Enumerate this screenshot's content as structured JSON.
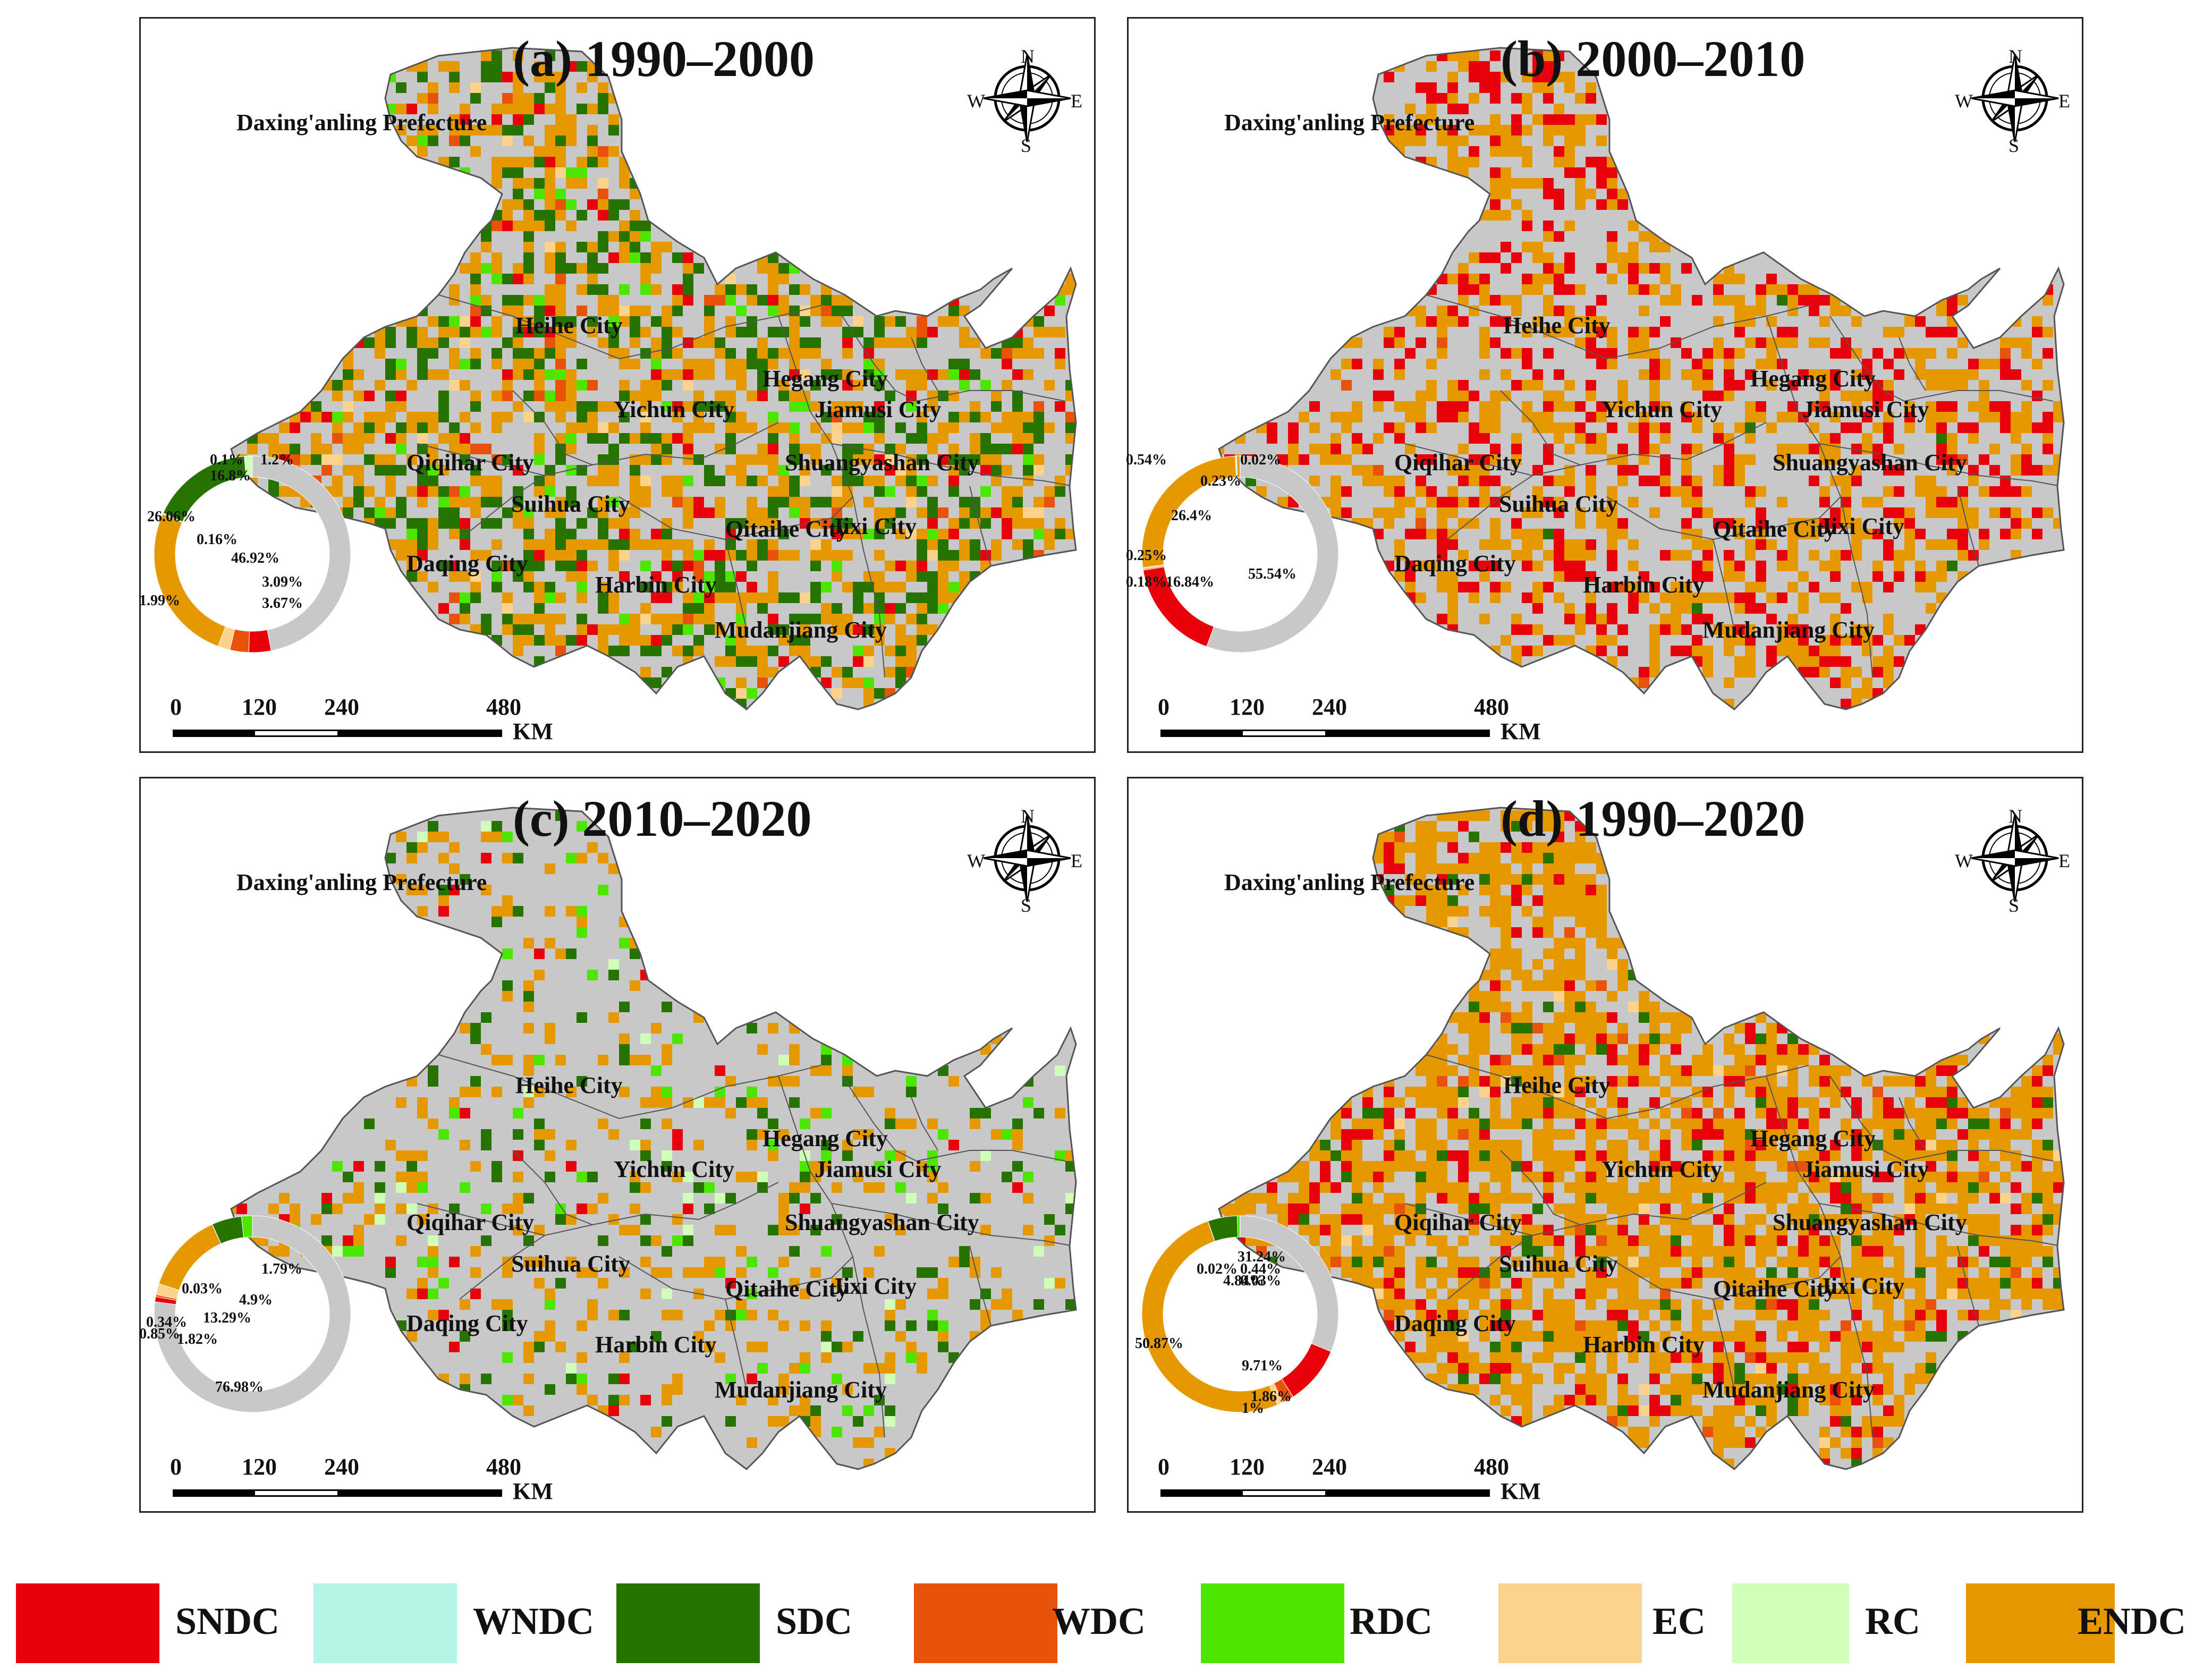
{
  "colors": {
    "SNDC": "#e8000b",
    "WNDC": "#b6f5e6",
    "SDC": "#267300",
    "WDC": "#e8520b",
    "RDC": "#4ce600",
    "EC": "#fbd38c",
    "RC": "#cfffb8",
    "ENDC": "#e69800",
    "NC": "#c8c8c8"
  },
  "legend": [
    {
      "code": "SNDC",
      "label": "SNDC"
    },
    {
      "code": "WNDC",
      "label": "WNDC"
    },
    {
      "code": "SDC",
      "label": "SDC"
    },
    {
      "code": "WDC",
      "label": "WDC"
    },
    {
      "code": "RDC",
      "label": "RDC"
    },
    {
      "code": "EC",
      "label": "EC"
    },
    {
      "code": "RC",
      "label": "RC"
    },
    {
      "code": "ENDC",
      "label": "ENDC"
    }
  ],
  "cities": [
    {
      "id": "daxinganling",
      "name": "Daxing'anling Prefecture"
    },
    {
      "id": "heihe",
      "name": "Heihe City"
    },
    {
      "id": "yichun",
      "name": "Yichun City"
    },
    {
      "id": "hegang",
      "name": "Hegang City"
    },
    {
      "id": "jiamusi",
      "name": "Jiamusi City"
    },
    {
      "id": "qiqihar",
      "name": "Qiqihar City"
    },
    {
      "id": "shuangyashan",
      "name": "Shuangyashan City"
    },
    {
      "id": "suihua",
      "name": "Suihua City"
    },
    {
      "id": "qitaihe",
      "name": "Qitaihe City"
    },
    {
      "id": "jixi",
      "name": "Jixi City"
    },
    {
      "id": "daqing",
      "name": "Daqing City"
    },
    {
      "id": "harbin",
      "name": "Harbin City"
    },
    {
      "id": "mudanjiang",
      "name": "Mudanjiang City"
    }
  ],
  "scale": {
    "ticks": [
      "0",
      "120",
      "240",
      "480"
    ],
    "unit": "KM"
  },
  "compass": {
    "n": "N",
    "s": "S",
    "e": "E",
    "w": "W"
  },
  "panels": [
    {
      "id": "a",
      "title": "(a) 1990–2000",
      "seed": 11,
      "mix": {
        "NC": 0.46,
        "ENDC": 0.27,
        "SDC": 0.17,
        "SNDC": 0.04,
        "RDC": 0.03,
        "WDC": 0.02,
        "EC": 0.01
      },
      "donut": [
        {
          "code": "NC",
          "value": 46.92,
          "label": "46.92%"
        },
        {
          "code": "SNDC",
          "value": 3.67,
          "label": "3.67%"
        },
        {
          "code": "WDC",
          "value": 3.09,
          "label": "3.09%"
        },
        {
          "code": "EC",
          "value": 1.99,
          "label": "1.99%"
        },
        {
          "code": "ENDC",
          "value": 26.06,
          "label": "26.06%"
        },
        {
          "code": "WNDC",
          "value": 0.16,
          "label": "0.16%"
        },
        {
          "code": "SDC",
          "value": 16.8,
          "label": "16.8%"
        },
        {
          "code": "RDC",
          "value": 0.1,
          "label": "0.1%"
        },
        {
          "code": "RC",
          "value": 1.2,
          "label": "1.2%"
        }
      ]
    },
    {
      "id": "b",
      "title": "(b) 2000–2010",
      "seed": 29,
      "mix": {
        "NC": 0.555,
        "ENDC": 0.265,
        "SNDC": 0.17,
        "WDC": 0.005,
        "SDC": 0.005
      },
      "donut": [
        {
          "code": "NC",
          "value": 55.54,
          "label": "55.54%"
        },
        {
          "code": "SNDC",
          "value": 16.84,
          "label": "16.84%"
        },
        {
          "code": "WDC",
          "value": 0.18,
          "label": "0.18%"
        },
        {
          "code": "EC",
          "value": 0.25,
          "label": "0.25%"
        },
        {
          "code": "ENDC",
          "value": 26.4,
          "label": "26.4%"
        },
        {
          "code": "WNDC",
          "value": 0.23,
          "label": "0.23%"
        },
        {
          "code": "ENDC",
          "value": 0.54,
          "label": "0.54%"
        },
        {
          "code": "SDC",
          "value": 0.02,
          "label": "0.02%"
        }
      ]
    },
    {
      "id": "c",
      "title": "(c) 2010–2020",
      "seed": 47,
      "mix": {
        "NC": 0.77,
        "ENDC": 0.13,
        "SDC": 0.05,
        "RDC": 0.03,
        "SNDC": 0.01,
        "RC": 0.01
      },
      "donut": [
        {
          "code": "NC",
          "value": 76.98,
          "label": "76.98%"
        },
        {
          "code": "SNDC",
          "value": 0.85,
          "label": "0.85%"
        },
        {
          "code": "WDC",
          "value": 0.34,
          "label": "0.34%"
        },
        {
          "code": "EC",
          "value": 1.82,
          "label": "1.82%"
        },
        {
          "code": "ENDC",
          "value": 13.29,
          "label": "13.29%"
        },
        {
          "code": "WNDC",
          "value": 0.03,
          "label": "0.03%"
        },
        {
          "code": "SDC",
          "value": 4.9,
          "label": "4.9%"
        },
        {
          "code": "RDC",
          "value": 1.79,
          "label": "1.79%"
        }
      ]
    },
    {
      "id": "d",
      "title": "(d) 1990–2020",
      "seed": 83,
      "mix": {
        "NC": 0.31,
        "ENDC": 0.51,
        "SNDC": 0.1,
        "SDC": 0.05,
        "WDC": 0.02,
        "EC": 0.01
      },
      "donut": [
        {
          "code": "NC",
          "value": 31.24,
          "label": "31.24%"
        },
        {
          "code": "SNDC",
          "value": 9.71,
          "label": "9.71%"
        },
        {
          "code": "WDC",
          "value": 1.86,
          "label": "1.86%"
        },
        {
          "code": "EC",
          "value": 1.0,
          "label": "1%"
        },
        {
          "code": "ENDC",
          "value": 50.87,
          "label": "50.87%"
        },
        {
          "code": "WNDC",
          "value": 0.02,
          "label": "0.02%"
        },
        {
          "code": "SDC",
          "value": 4.84,
          "label": "4.84%"
        },
        {
          "code": "RDC",
          "value": 0.44,
          "label": "0.44%"
        },
        {
          "code": "RC",
          "value": 0.03,
          "label": "0.03%"
        }
      ]
    }
  ]
}
